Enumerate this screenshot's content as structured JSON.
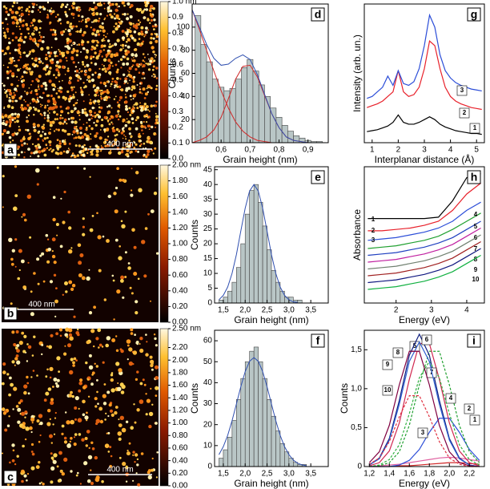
{
  "chart_data": [
    {
      "type": "image",
      "label": "a",
      "scale_bar": "400 nm",
      "colorbar": {
        "lim": [
          0,
          1
        ],
        "ticks": [
          {
            "value": 0,
            "label": "0.0"
          },
          0.1,
          0.2,
          0.3,
          0.4,
          0.5,
          0.6,
          0.7,
          0.8,
          0.9,
          {
            "value": 1,
            "label": "1.0 nm"
          }
        ]
      }
    },
    {
      "type": "histogram",
      "label": "d",
      "xlabel": "Grain height (nm)",
      "ylabel": "Counts",
      "color": "#b9c6c6",
      "bins": [
        0.51,
        0.53,
        0.55,
        0.57,
        0.59,
        0.61,
        0.63,
        0.65,
        0.67,
        0.69,
        0.71,
        0.73,
        0.75,
        0.77,
        0.79,
        0.81,
        0.83,
        0.85,
        0.87,
        0.89,
        0.91,
        0.93,
        0.95
      ],
      "counts": [
        110,
        85,
        70,
        55,
        48,
        45,
        47,
        55,
        65,
        72,
        62,
        50,
        40,
        30,
        22,
        15,
        10,
        6,
        4,
        2,
        1,
        1
      ],
      "fit_x": [
        0.5,
        0.525,
        0.55,
        0.575,
        0.6,
        0.625,
        0.65,
        0.675,
        0.7,
        0.725,
        0.75,
        0.775,
        0.8,
        0.825,
        0.85,
        0.875,
        0.9,
        0.925,
        0.95
      ],
      "fits": [
        {
          "color": "#d02828",
          "values": [
            115,
            98,
            80,
            62,
            45,
            30,
            18,
            10,
            5,
            2,
            1,
            0,
            0,
            0,
            0,
            0,
            0,
            0,
            0
          ]
        },
        {
          "color": "#d02828",
          "values": [
            0,
            2,
            5,
            11,
            22,
            38,
            55,
            66,
            67,
            57,
            41,
            25,
            13,
            5,
            2,
            1,
            0,
            0,
            0
          ]
        },
        {
          "color": "#3050b0",
          "values": [
            115,
            100,
            85,
            73,
            67,
            68,
            73,
            76,
            72,
            59,
            42,
            25,
            13,
            5,
            2,
            1,
            0,
            0,
            0
          ]
        }
      ],
      "xlim": [
        0.5,
        0.97
      ],
      "xticks": [
        {
          "value": 0.6,
          "label": "0,6"
        },
        {
          "value": 0.7,
          "label": "0,7"
        },
        {
          "value": 0.8,
          "label": "0,8"
        },
        {
          "value": 0.9,
          "label": "0,9"
        }
      ],
      "ylim": [
        0,
        120
      ],
      "yticks": [
        0,
        20,
        40,
        60,
        80,
        100
      ]
    },
    {
      "type": "line",
      "label": "g",
      "xlabel": "Interplanar distance (Å)",
      "ylabel": "Intensity (arb. un.)",
      "x": [
        0.8,
        1.0,
        1.2,
        1.4,
        1.6,
        1.8,
        2.0,
        2.2,
        2.4,
        2.6,
        2.8,
        3.0,
        3.2,
        3.4,
        3.6,
        3.8,
        4.0,
        4.2,
        4.4,
        4.6,
        4.8,
        5.0,
        5.2
      ],
      "series": [
        {
          "name": "1",
          "color": "#000000",
          "values": [
            0.12,
            0.13,
            0.14,
            0.16,
            0.18,
            0.22,
            0.3,
            0.22,
            0.2,
            0.2,
            0.22,
            0.25,
            0.28,
            0.25,
            0.2,
            0.17,
            0.15,
            0.13,
            0.12,
            0.11,
            0.1,
            0.1,
            0.09
          ]
        },
        {
          "name": "2",
          "color": "#e8202a",
          "values": [
            0.38,
            0.4,
            0.42,
            0.45,
            0.5,
            0.55,
            0.78,
            0.55,
            0.5,
            0.52,
            0.6,
            0.8,
            1.1,
            1.05,
            0.8,
            0.6,
            0.5,
            0.45,
            0.42,
            0.4,
            0.38,
            0.37,
            0.36
          ]
        },
        {
          "name": "3",
          "color": "#2c4ed8",
          "values": [
            0.48,
            0.5,
            0.55,
            0.6,
            0.72,
            0.62,
            0.78,
            0.64,
            0.62,
            0.66,
            0.8,
            1.05,
            1.38,
            1.25,
            0.95,
            0.78,
            0.7,
            0.65,
            0.62,
            0.6,
            0.58,
            0.57,
            0.56
          ]
        }
      ],
      "xlim": [
        0.7,
        5.3
      ],
      "xticks": [
        1,
        2,
        3,
        4,
        5
      ],
      "ylim": [
        0,
        1.5
      ]
    },
    {
      "type": "image",
      "label": "b",
      "scale_bar": "400 nm",
      "colorbar": {
        "lim": [
          0,
          2
        ],
        "ticks": [
          {
            "value": 0,
            "label": "0.00"
          },
          {
            "value": 0.2,
            "label": "0.20"
          },
          {
            "value": 0.4,
            "label": "0.40"
          },
          {
            "value": 0.6,
            "label": "0.60"
          },
          {
            "value": 0.8,
            "label": "0.80"
          },
          {
            "value": 1,
            "label": "1.00"
          },
          {
            "value": 1.2,
            "label": "1.20"
          },
          {
            "value": 1.4,
            "label": "1.40"
          },
          {
            "value": 1.6,
            "label": "1.60"
          },
          {
            "value": 1.8,
            "label": "1.80"
          },
          {
            "value": 2,
            "label": "2.00 nm"
          }
        ]
      }
    },
    {
      "type": "histogram",
      "label": "e",
      "xlabel": "Grain height (nm)",
      "ylabel": "Counts",
      "color": "#b9c6c6",
      "bins": [
        1.4,
        1.5,
        1.6,
        1.7,
        1.8,
        1.9,
        2.0,
        2.1,
        2.2,
        2.3,
        2.4,
        2.5,
        2.6,
        2.7,
        2.8,
        2.9,
        3.0,
        3.1,
        3.2,
        3.3
      ],
      "counts": [
        1,
        2,
        4,
        7,
        12,
        20,
        30,
        38,
        40,
        34,
        26,
        18,
        11,
        7,
        4,
        2,
        2,
        1,
        1
      ],
      "fit_x": [
        1.4,
        1.5,
        1.6,
        1.7,
        1.8,
        1.9,
        2.0,
        2.1,
        2.2,
        2.3,
        2.4,
        2.5,
        2.6,
        2.7,
        2.8,
        2.9,
        3.0,
        3.1,
        3.2
      ],
      "fits": [
        {
          "color": "#3050b0",
          "values": [
            1.1,
            2.6,
            5.4,
            10,
            16.4,
            24.3,
            32,
            37.8,
            40,
            37.8,
            32,
            24.3,
            16.4,
            10,
            5.4,
            2.6,
            1.1,
            0.4,
            0.2
          ]
        }
      ],
      "xlim": [
        1.3,
        3.9
      ],
      "xticks": [
        {
          "value": 1.5,
          "label": "1,5"
        },
        {
          "value": 2,
          "label": "2,0"
        },
        {
          "value": 2.5,
          "label": "2,5"
        },
        {
          "value": 3,
          "label": "3,0"
        },
        {
          "value": 3.5,
          "label": "3,5"
        }
      ],
      "ylim": [
        0,
        46
      ],
      "yticks": [
        0,
        5,
        10,
        15,
        20,
        25,
        30,
        35,
        40,
        45
      ]
    },
    {
      "type": "line",
      "label": "h",
      "xlabel": "Energy (eV)",
      "ylabel": "Absorbance",
      "x": [
        1.2,
        1.6,
        2.0,
        2.4,
        2.8,
        3.2,
        3.6,
        4.0,
        4.4
      ],
      "series": [
        {
          "name": "1",
          "color": "#000000",
          "values": [
            0.62,
            0.62,
            0.62,
            0.62,
            0.62,
            0.63,
            0.75,
            0.92,
            0.95
          ]
        },
        {
          "name": "2",
          "color": "#e8202a",
          "values": [
            0.53,
            0.53,
            0.54,
            0.55,
            0.57,
            0.6,
            0.68,
            0.8,
            0.88
          ]
        },
        {
          "name": "3",
          "color": "#2c4ed8",
          "values": [
            0.46,
            0.47,
            0.48,
            0.5,
            0.52,
            0.55,
            0.6,
            0.68,
            0.74
          ]
        },
        {
          "name": "4",
          "color": "#20a030",
          "values": [
            0.4,
            0.41,
            0.42,
            0.44,
            0.46,
            0.49,
            0.54,
            0.6,
            0.66
          ]
        },
        {
          "name": "5",
          "color": "#2040c0",
          "values": [
            0.35,
            0.36,
            0.37,
            0.39,
            0.41,
            0.44,
            0.48,
            0.54,
            0.6
          ]
        },
        {
          "name": "6",
          "color": "#c020a0",
          "values": [
            0.3,
            0.31,
            0.32,
            0.34,
            0.36,
            0.39,
            0.43,
            0.49,
            0.55
          ]
        },
        {
          "name": "7",
          "color": "#708070",
          "values": [
            0.25,
            0.26,
            0.27,
            0.29,
            0.31,
            0.34,
            0.38,
            0.44,
            0.5
          ]
        },
        {
          "name": "8",
          "color": "#a02020",
          "values": [
            0.2,
            0.21,
            0.22,
            0.24,
            0.26,
            0.29,
            0.33,
            0.39,
            0.45
          ]
        },
        {
          "name": "9",
          "color": "#101880",
          "values": [
            0.15,
            0.16,
            0.17,
            0.19,
            0.21,
            0.24,
            0.28,
            0.34,
            0.4
          ]
        },
        {
          "name": "10",
          "color": "#10b040",
          "values": [
            0.1,
            0.11,
            0.12,
            0.14,
            0.16,
            0.19,
            0.23,
            0.29,
            0.35
          ]
        }
      ],
      "xlim": [
        1.1,
        4.5
      ],
      "xticks": [
        2,
        3,
        4
      ],
      "ylim": [
        0,
        1
      ]
    },
    {
      "type": "image",
      "label": "c",
      "scale_bar": "400 nm",
      "colorbar": {
        "lim": [
          0,
          2.5
        ],
        "ticks": [
          {
            "value": 0,
            "label": "0.00"
          },
          {
            "value": 0.2,
            "label": "0.20"
          },
          {
            "value": 0.4,
            "label": "0.40"
          },
          {
            "value": 0.6,
            "label": "0.60"
          },
          {
            "value": 0.8,
            "label": "0.80"
          },
          {
            "value": 1,
            "label": "1.00"
          },
          {
            "value": 1.2,
            "label": "1.20"
          },
          {
            "value": 1.4,
            "label": "1.40"
          },
          {
            "value": 1.6,
            "label": "1.60"
          },
          {
            "value": 1.8,
            "label": "1.80"
          },
          {
            "value": 2,
            "label": "2.00"
          },
          {
            "value": 2.2,
            "label": "2.20"
          },
          {
            "value": 2.5,
            "label": "2.50 nm"
          }
        ]
      }
    },
    {
      "type": "histogram",
      "label": "f",
      "xlabel": "Grain height (nm)",
      "ylabel": "Counts",
      "color": "#b9c6c6",
      "bins": [
        1.4,
        1.5,
        1.6,
        1.7,
        1.8,
        1.9,
        2.0,
        2.1,
        2.2,
        2.3,
        2.4,
        2.5,
        2.6,
        2.7,
        2.8,
        2.9,
        3.0,
        3.1,
        3.2,
        3.3,
        3.4
      ],
      "counts": [
        4,
        8,
        14,
        22,
        32,
        42,
        50,
        55,
        57,
        50,
        42,
        32,
        24,
        17,
        11,
        7,
        4,
        2,
        1,
        1
      ],
      "fit_x": [
        1.4,
        1.5,
        1.6,
        1.7,
        1.8,
        1.9,
        2.0,
        2.1,
        2.2,
        2.3,
        2.4,
        2.5,
        2.6,
        2.7,
        2.8,
        2.9,
        3.0,
        3.1,
        3.2,
        3.3,
        3.4
      ],
      "fits": [
        {
          "color": "#3050b0",
          "values": [
            5.7,
            9.5,
            14.9,
            21.9,
            29.9,
            38.1,
            45.3,
            50.2,
            52,
            50.2,
            45.3,
            38.1,
            29.9,
            21.9,
            14.9,
            9.5,
            5.7,
            3.1,
            1.6,
            0.8,
            0.4
          ]
        }
      ],
      "xlim": [
        1.3,
        3.9
      ],
      "xticks": [
        {
          "value": 1.5,
          "label": "1,5"
        },
        {
          "value": 2,
          "label": "2,0"
        },
        {
          "value": 2.5,
          "label": "2,5"
        },
        {
          "value": 3,
          "label": "3,0"
        },
        {
          "value": 3.5,
          "label": "3,5"
        }
      ],
      "ylim": [
        0,
        65
      ],
      "yticks": [
        0,
        10,
        20,
        30,
        40,
        50,
        60
      ]
    },
    {
      "type": "line",
      "label": "i",
      "xlabel": "Energy (eV)",
      "ylabel": "Counts",
      "x": [
        1.2,
        1.3,
        1.4,
        1.5,
        1.6,
        1.7,
        1.8,
        1.9,
        2.0,
        2.1,
        2.2,
        2.3
      ],
      "series": [
        {
          "name": "1",
          "color": "#d02828",
          "values": [
            0,
            0,
            0,
            0.01,
            0.01,
            0.02,
            0.03,
            0.04,
            0.05,
            0.05,
            0.04,
            0.03
          ]
        },
        {
          "name": "2",
          "color": "#e060a0",
          "values": [
            0,
            0.01,
            0.02,
            0.03,
            0.05,
            0.07,
            0.09,
            0.11,
            0.12,
            0.11,
            0.09,
            0.07
          ]
        },
        {
          "name": "3",
          "color": "#2c4ed8",
          "values": [
            0,
            0,
            0,
            0.02,
            0.08,
            0.22,
            0.44,
            0.62,
            0.62,
            0.44,
            0.22,
            0.08
          ]
        },
        {
          "name": "4",
          "color": "#20a030",
          "dashed": true,
          "values": [
            0,
            0.01,
            0.05,
            0.19,
            0.53,
            1.05,
            1.48,
            1.48,
            1.05,
            0.53,
            0.19,
            0.05
          ]
        },
        {
          "name": "5",
          "color": "#d02850",
          "values": [
            0.01,
            0.05,
            0.2,
            0.56,
            1.12,
            1.58,
            1.58,
            1.12,
            0.56,
            0.2,
            0.05,
            0.01
          ]
        },
        {
          "name": "6",
          "color": "#102080",
          "values": [
            0.02,
            0.11,
            0.36,
            0.85,
            1.43,
            1.7,
            1.43,
            0.85,
            0.36,
            0.11,
            0.02,
            0
          ]
        },
        {
          "name": "7",
          "color": "#30b040",
          "dashed": true,
          "values": [
            0,
            0.02,
            0.09,
            0.28,
            0.68,
            1.14,
            1.35,
            1.14,
            0.68,
            0.28,
            0.09,
            0.02
          ]
        },
        {
          "name": "8",
          "color": "#3060d0",
          "values": [
            0.02,
            0.1,
            0.34,
            0.8,
            1.35,
            1.6,
            1.35,
            0.8,
            0.34,
            0.1,
            0.02,
            0
          ]
        },
        {
          "name": "9",
          "color": "#800040",
          "values": [
            0.05,
            0.19,
            0.53,
            1.05,
            1.48,
            1.48,
            1.05,
            0.53,
            0.19,
            0.05,
            0.01,
            0
          ]
        },
        {
          "name": "10",
          "color": "#e03040",
          "dashed": true,
          "values": [
            0.03,
            0.11,
            0.32,
            0.64,
            0.91,
            0.91,
            0.64,
            0.32,
            0.11,
            0.03,
            0,
            0
          ]
        }
      ],
      "xlim": [
        1.15,
        2.35
      ],
      "xticks": [
        {
          "value": 1.2,
          "label": "1,2"
        },
        {
          "value": 1.4,
          "label": "1,4"
        },
        {
          "value": 1.6,
          "label": "1,6"
        },
        {
          "value": 1.8,
          "label": "1,8"
        },
        {
          "value": 2,
          "label": "2,0"
        },
        {
          "value": 2.2,
          "label": "2,2"
        }
      ],
      "ylim": [
        0,
        1.75
      ],
      "yticks": [
        0,
        {
          "value": 0.5,
          "label": "0,5"
        },
        {
          "value": 1,
          "label": "1,0"
        },
        {
          "value": 1.5,
          "label": "1,5"
        }
      ]
    }
  ]
}
